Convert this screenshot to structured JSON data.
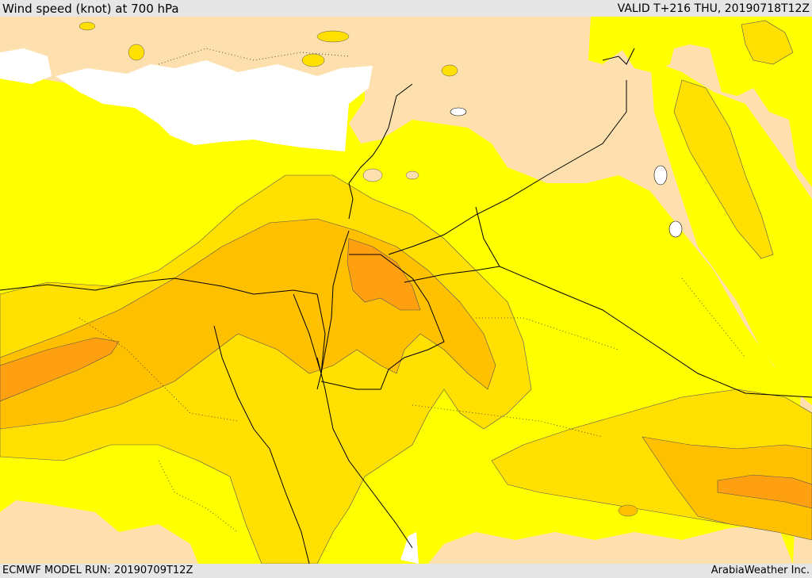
{
  "header": {
    "title": "Wind speed (knot) at 700 hPa",
    "valid": "VALID T+216 THU, 20190718T12Z"
  },
  "footer": {
    "model_run": "ECMWF MODEL RUN: 20190709T12Z",
    "brand": "ArabiaWeather Inc."
  },
  "colors": {
    "land_calm": "#fde0ae",
    "band_1": "#ffff00",
    "band_2": "#ffe000",
    "band_3": "#ffc000",
    "band_4": "#ffa010",
    "sea_outside": "#ffffff",
    "boundary": "#000000"
  }
}
